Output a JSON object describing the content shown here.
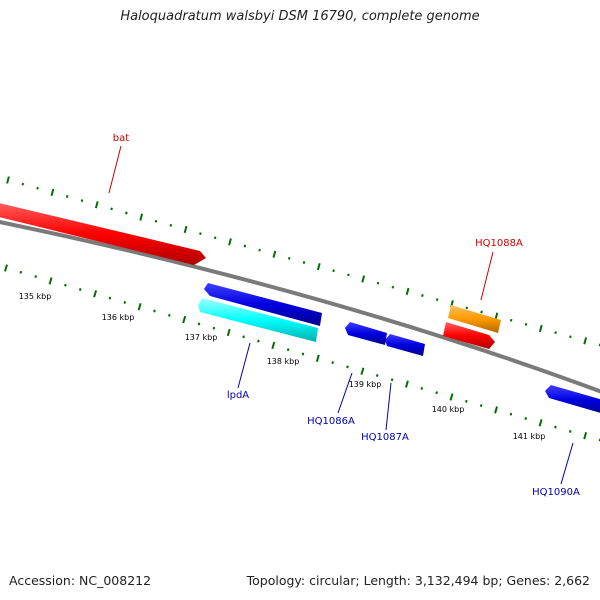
{
  "header": {
    "title": "Haloquadratum walsbyi DSM 16790, complete genome"
  },
  "footer": {
    "accession": "Accession: NC_008212",
    "summary": "Topology: circular; Length: 3,132,494 bp; Genes: 2,662"
  },
  "colors": {
    "backbone": "#808080",
    "gene_red": "#ff0000",
    "gene_blue": "#0000e0",
    "gene_cyan": "#00ffff",
    "gene_orange": "#ff9900",
    "tick_green": "#007000",
    "label_red": "#cc0000",
    "label_blue": "#0000aa"
  },
  "scale_ticks": [
    {
      "label": "135 kbp"
    },
    {
      "label": "136 kbp"
    },
    {
      "label": "137 kbp"
    },
    {
      "label": "138 kbp"
    },
    {
      "label": "139 kbp"
    },
    {
      "label": "140 kbp"
    },
    {
      "label": "141 kbp"
    }
  ],
  "genes": [
    {
      "id": "bat",
      "label": "bat",
      "strand": "forward",
      "color": "red"
    },
    {
      "id": "HQ1088A",
      "label": "HQ1088A",
      "strand": "forward",
      "color": "orange"
    },
    {
      "id": "HQ1088A-red",
      "label": "",
      "strand": "forward",
      "color": "red"
    },
    {
      "id": "lpdA",
      "label": "lpdA",
      "strand": "reverse",
      "color": "blue"
    },
    {
      "id": "lpdA-cyan",
      "label": "",
      "strand": "reverse",
      "color": "cyan"
    },
    {
      "id": "HQ1086A",
      "label": "HQ1086A",
      "strand": "reverse",
      "color": "blue"
    },
    {
      "id": "HQ1087A",
      "label": "HQ1087A",
      "strand": "reverse",
      "color": "blue"
    },
    {
      "id": "HQ1090A",
      "label": "HQ1090A",
      "strand": "reverse",
      "color": "blue"
    }
  ]
}
